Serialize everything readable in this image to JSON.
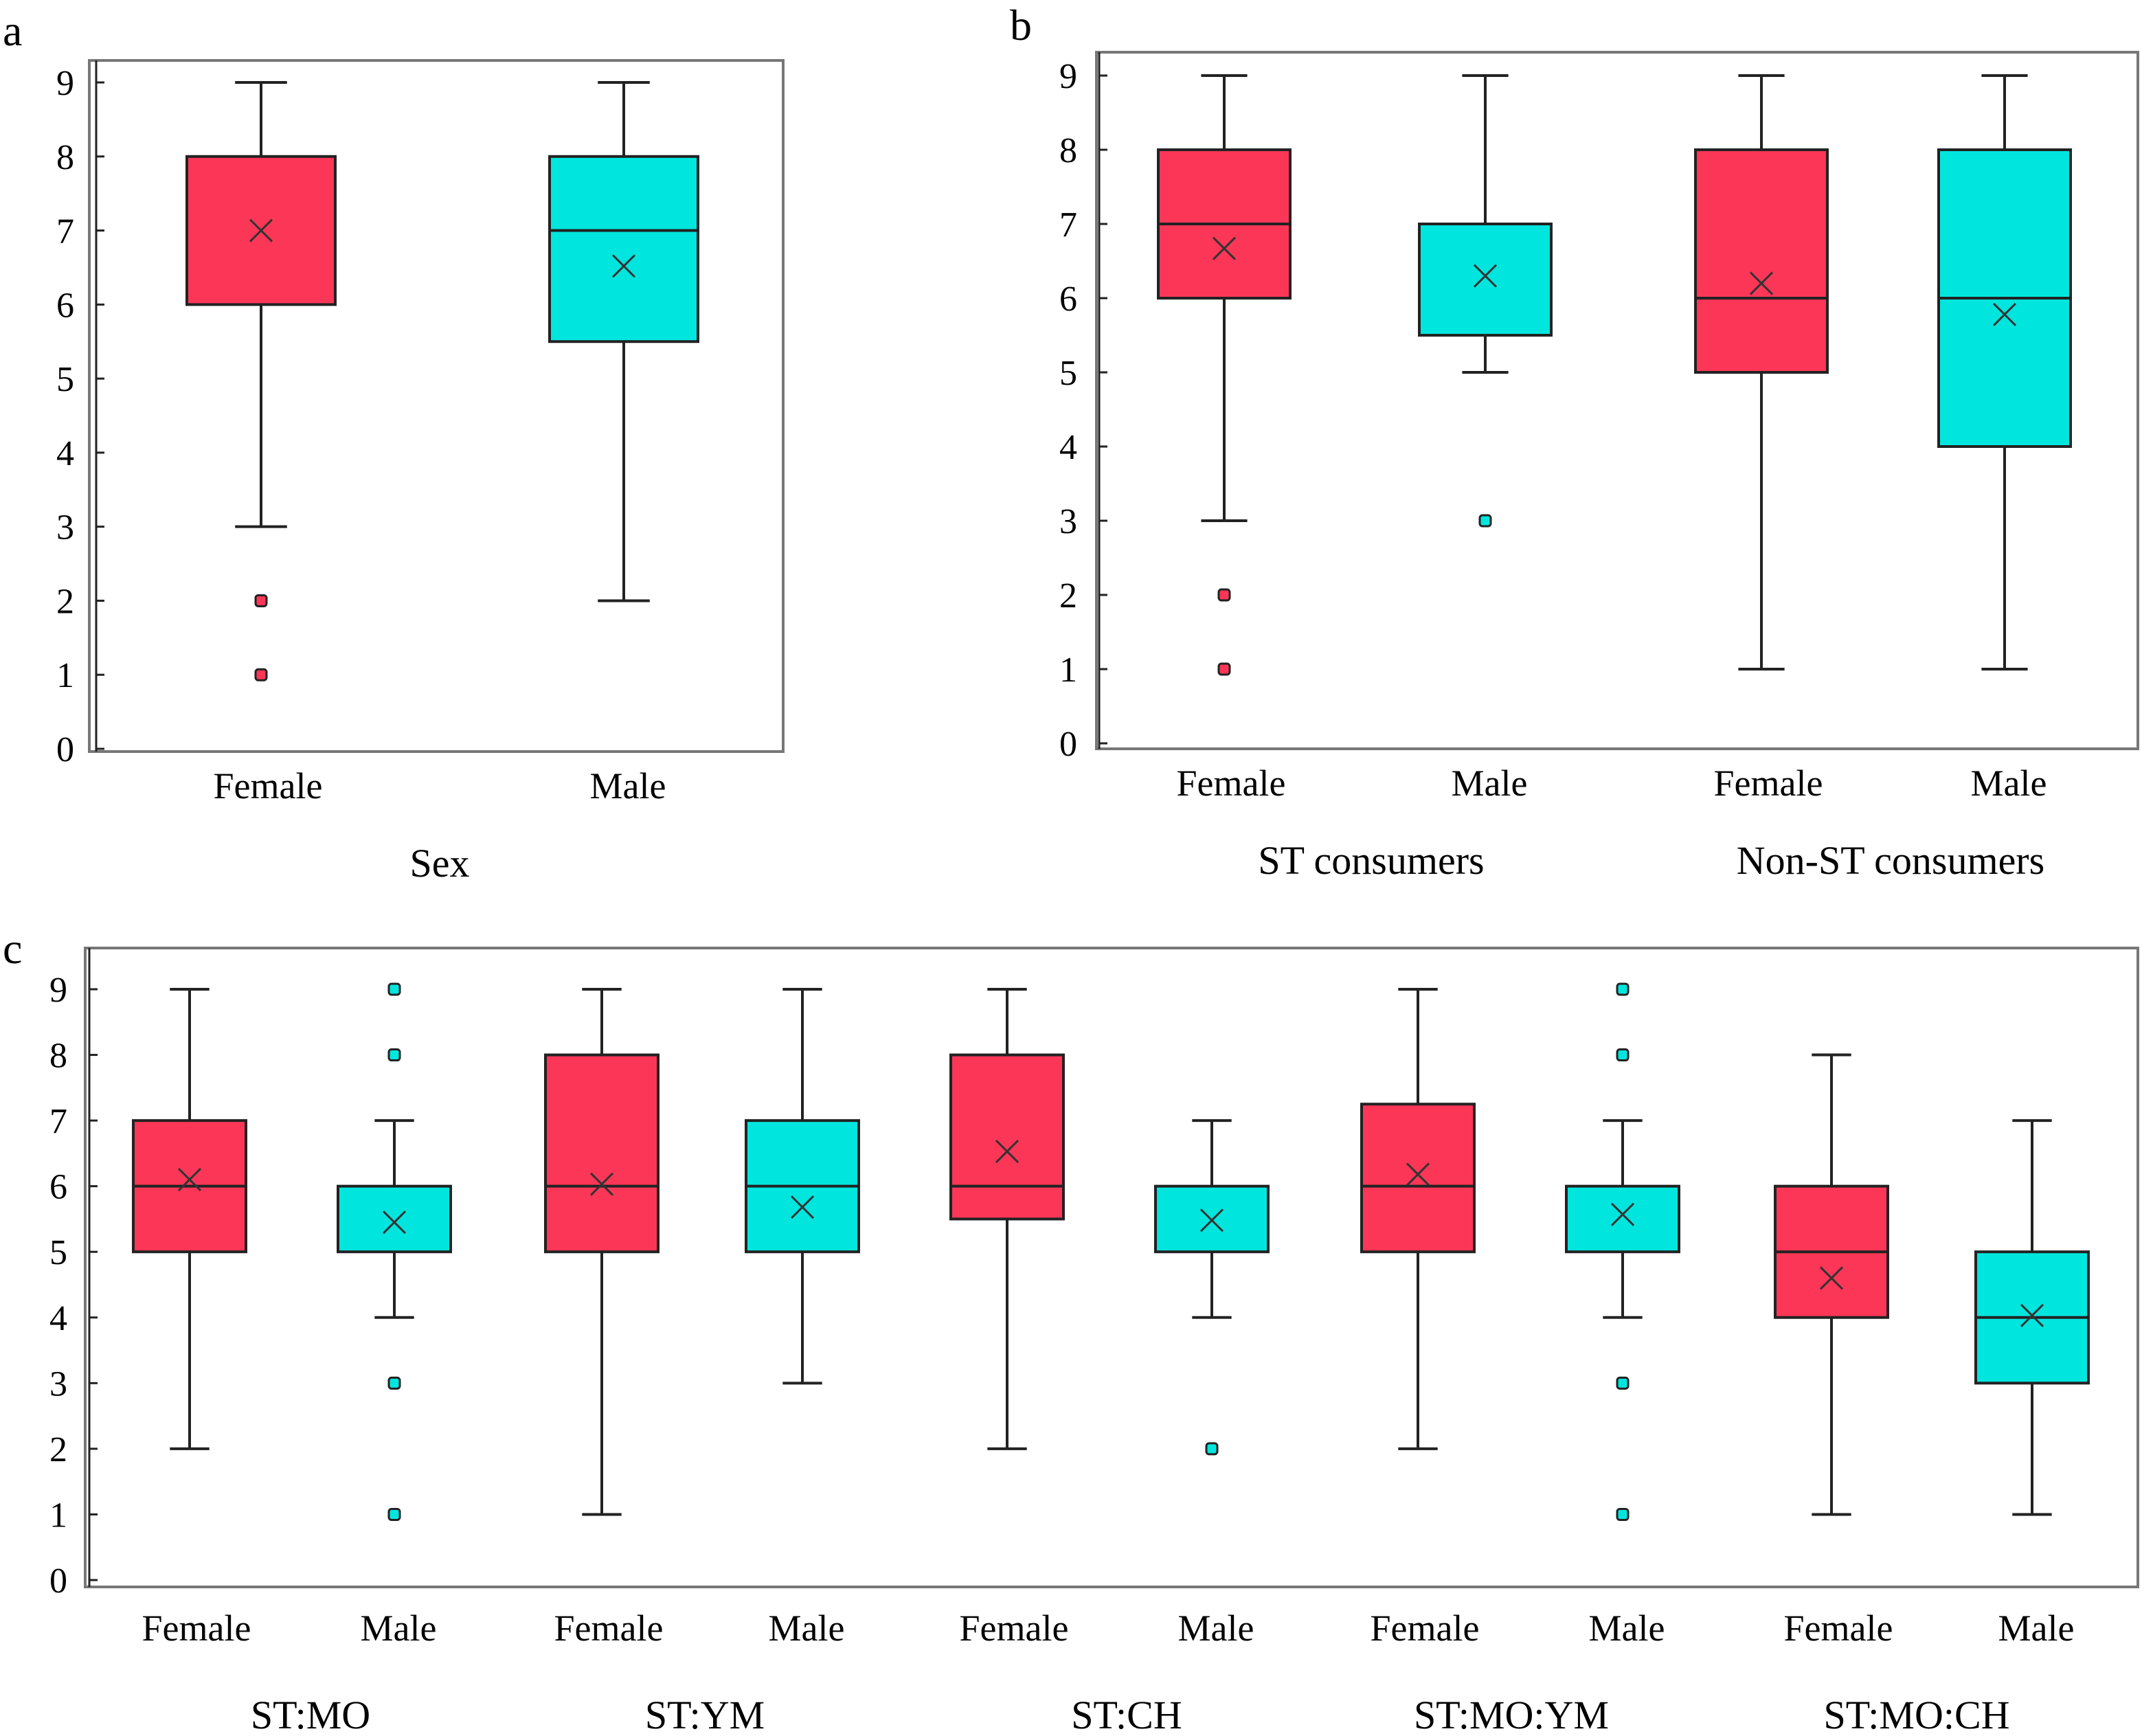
{
  "colors": {
    "female": "#fb3657",
    "male": "#00e6de",
    "stroke": "#222222",
    "frame": "#777777",
    "female_outlier": "#fb3657",
    "male_outlier": "#00e6de"
  },
  "chart_data": [
    {
      "panel": "a",
      "type": "box",
      "title": "",
      "xlabel": "",
      "ylabel": "",
      "ylim": [
        0,
        9
      ],
      "yticks": [
        "0",
        "1",
        "2",
        "3",
        "4",
        "5",
        "6",
        "7",
        "8",
        "9"
      ],
      "groups": [
        {
          "label": "Sex",
          "boxes": [
            0,
            1
          ]
        }
      ],
      "boxes": [
        {
          "category": "Female",
          "sex": "female",
          "min": 3,
          "q1": 6,
          "median": null,
          "q3": 8,
          "max": 9,
          "mean": 7.0,
          "outliers": [
            1,
            2
          ]
        },
        {
          "category": "Male",
          "sex": "male",
          "min": 2,
          "q1": 5.5,
          "median": 7,
          "q3": 8,
          "max": 9,
          "mean": 6.52,
          "outliers": []
        }
      ]
    },
    {
      "panel": "b",
      "type": "box",
      "ylim": [
        0,
        9
      ],
      "yticks": [
        "0",
        "1",
        "2",
        "3",
        "4",
        "5",
        "6",
        "7",
        "8",
        "9"
      ],
      "groups": [
        {
          "label": "ST consumers",
          "boxes": [
            0,
            1
          ]
        },
        {
          "label": "Non-ST consumers",
          "boxes": [
            2,
            3
          ]
        }
      ],
      "boxes": [
        {
          "category": "Female",
          "sex": "female",
          "min": 3,
          "q1": 6,
          "median": 7,
          "q3": 8,
          "max": 9,
          "mean": 6.67,
          "outliers": [
            1,
            2
          ]
        },
        {
          "category": "Male",
          "sex": "male",
          "min": 5,
          "q1": 5.5,
          "median": null,
          "q3": 7,
          "max": 9,
          "mean": 6.3,
          "outliers": [
            3
          ]
        },
        {
          "category": "Female",
          "sex": "female",
          "min": 1,
          "q1": 5,
          "median": 6,
          "q3": 8,
          "max": 9,
          "mean": 6.2,
          "outliers": []
        },
        {
          "category": "Male",
          "sex": "male",
          "min": 1,
          "q1": 4,
          "median": 6,
          "q3": 8,
          "max": 9,
          "mean": 5.78,
          "outliers": []
        }
      ]
    },
    {
      "panel": "c",
      "type": "box",
      "ylim": [
        0,
        9
      ],
      "yticks": [
        "0",
        "1",
        "2",
        "3",
        "4",
        "5",
        "6",
        "7",
        "8",
        "9"
      ],
      "groups": [
        {
          "label": "ST:MO",
          "boxes": [
            0,
            1
          ]
        },
        {
          "label": "ST:YM",
          "boxes": [
            2,
            3
          ]
        },
        {
          "label": "ST:CH",
          "boxes": [
            4,
            5
          ]
        },
        {
          "label": "ST:MO:YM",
          "boxes": [
            6,
            7
          ]
        },
        {
          "label": "ST:MO:CH",
          "boxes": [
            8,
            9
          ]
        }
      ],
      "boxes": [
        {
          "category": "Female",
          "sex": "female",
          "min": 2,
          "q1": 5,
          "median": 6,
          "q3": 7,
          "max": 9,
          "mean": 6.1,
          "outliers": []
        },
        {
          "category": "Male",
          "sex": "male",
          "min": 4,
          "q1": 5,
          "median": null,
          "q3": 6,
          "max": 7,
          "mean": 5.45,
          "outliers": [
            1,
            3,
            8,
            9
          ]
        },
        {
          "category": "Female",
          "sex": "female",
          "min": 1,
          "q1": 5,
          "median": 6,
          "q3": 8,
          "max": 9,
          "mean": 6.03,
          "outliers": []
        },
        {
          "category": "Male",
          "sex": "male",
          "min": 3,
          "q1": 5,
          "median": 6,
          "q3": 7,
          "max": 9,
          "mean": 5.68,
          "outliers": []
        },
        {
          "category": "Female",
          "sex": "female",
          "min": 2,
          "q1": 5.5,
          "median": 6,
          "q3": 8,
          "max": 9,
          "mean": 6.53,
          "outliers": []
        },
        {
          "category": "Male",
          "sex": "male",
          "min": 4,
          "q1": 5,
          "median": null,
          "q3": 6,
          "max": 7,
          "mean": 5.48,
          "outliers": [
            2
          ]
        },
        {
          "category": "Female",
          "sex": "female",
          "min": 2,
          "q1": 5,
          "median": 6,
          "q3": 7.25,
          "max": 9,
          "mean": 6.18,
          "outliers": []
        },
        {
          "category": "Male",
          "sex": "male",
          "min": 4,
          "q1": 5,
          "median": null,
          "q3": 6,
          "max": 7,
          "mean": 5.57,
          "outliers": [
            1,
            3,
            8,
            9
          ]
        },
        {
          "category": "Female",
          "sex": "female",
          "min": 1,
          "q1": 4,
          "median": 5,
          "q3": 6,
          "max": 8,
          "mean": 4.6,
          "outliers": []
        },
        {
          "category": "Male",
          "sex": "male",
          "min": 1,
          "q1": 3,
          "median": 4,
          "q3": 5,
          "max": 7,
          "mean": 4.03,
          "outliers": []
        }
      ]
    }
  ],
  "panel_letters": [
    "a",
    "b",
    "c"
  ]
}
